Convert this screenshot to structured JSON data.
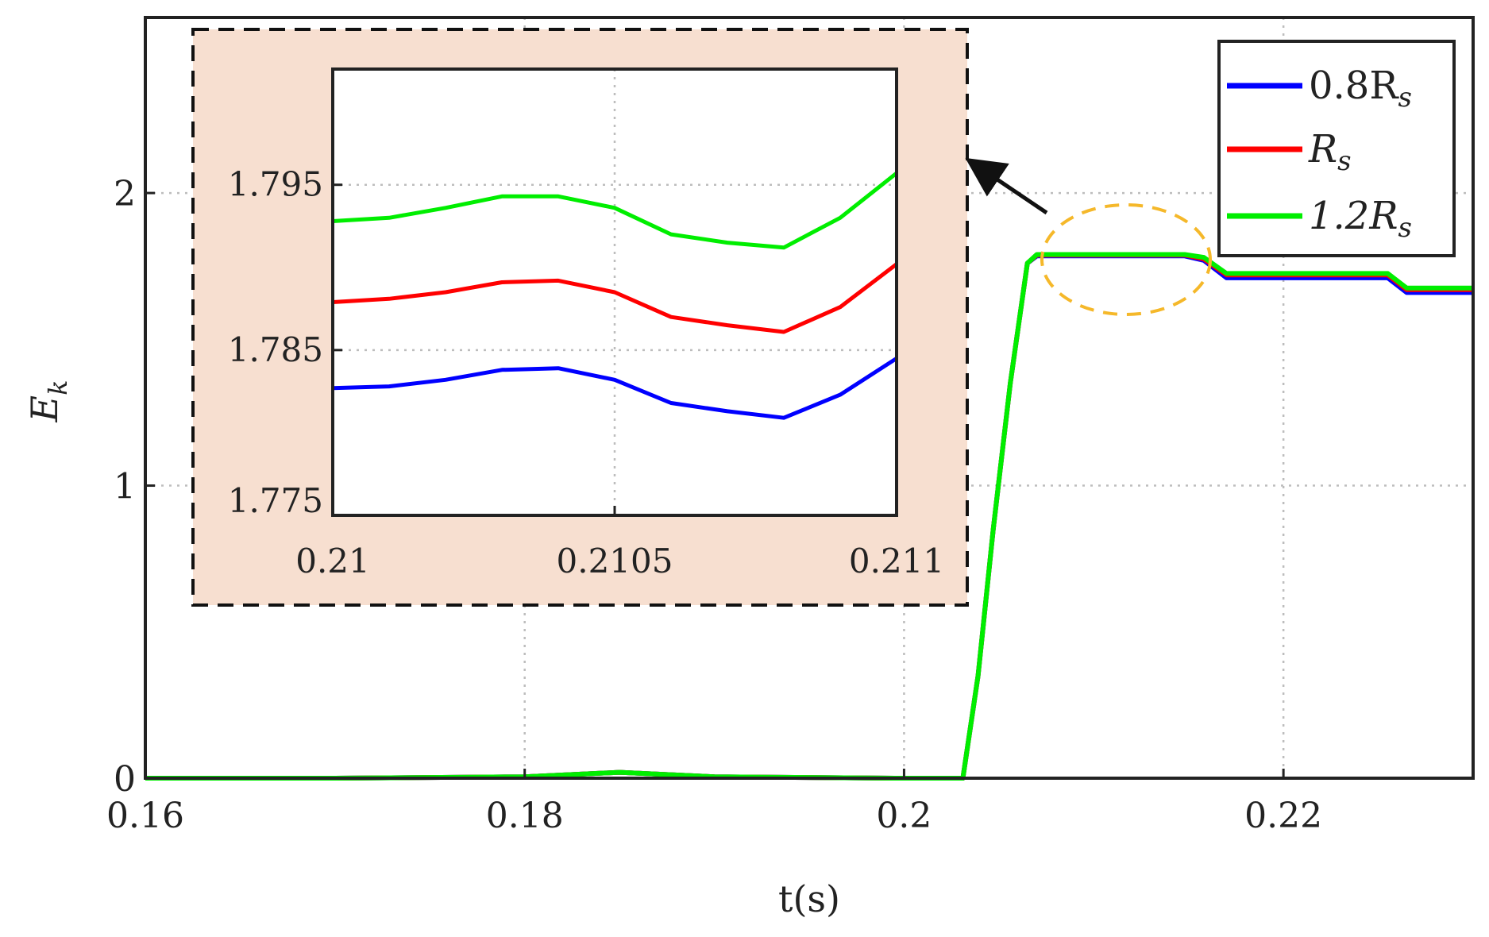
{
  "colors": {
    "series_0_8Rs": "#0000ff",
    "series_Rs": "#ff0000",
    "series_1_2Rs": "#00ee00",
    "inset_background": "#f7dfd0",
    "highlight_ellipse": "#f5b82a",
    "grid": "#bdbdbd",
    "axis": "#222222"
  },
  "chart_data": [
    {
      "type": "line",
      "xlabel": "t(s)",
      "ylabel_main": "E",
      "ylabel_sub": "k",
      "xlim": [
        0.16,
        0.23
      ],
      "ylim": [
        0,
        2.6
      ],
      "xticks": [
        "0.16",
        "0.18",
        "0.2",
        "0.22"
      ],
      "yticks": [
        "0",
        "1",
        "2"
      ],
      "xtick_values": [
        0.16,
        0.18,
        0.2,
        0.22
      ],
      "ytick_values": [
        0,
        1,
        2
      ],
      "grid": true,
      "legend_placement": "top-right",
      "x": [
        0.16,
        0.17,
        0.18,
        0.185,
        0.19,
        0.1995,
        0.2031,
        0.2039,
        0.2047,
        0.2056,
        0.2065,
        0.207,
        0.21,
        0.2148,
        0.2158,
        0.217,
        0.2185,
        0.2225,
        0.2255,
        0.2265,
        0.23
      ],
      "series": [
        {
          "name_main": "0.8R",
          "name_sub": "s",
          "values": [
            0.0,
            0.0,
            0.005,
            0.02,
            0.005,
            0.0,
            0.0,
            0.35,
            0.85,
            1.35,
            1.76,
            1.785,
            1.785,
            1.785,
            1.77,
            1.71,
            1.71,
            1.71,
            1.71,
            1.66,
            1.66
          ]
        },
        {
          "name_main": "R",
          "name_sub": "s",
          "values": [
            0.0,
            0.0,
            0.005,
            0.02,
            0.005,
            0.0,
            0.0,
            0.35,
            0.85,
            1.35,
            1.76,
            1.788,
            1.788,
            1.788,
            1.775,
            1.72,
            1.72,
            1.72,
            1.72,
            1.67,
            1.67
          ]
        },
        {
          "name_main": "1.2R",
          "name_sub": "s",
          "values": [
            0.0,
            0.0,
            0.005,
            0.02,
            0.005,
            0.0,
            0.0,
            0.35,
            0.85,
            1.35,
            1.76,
            1.79,
            1.79,
            1.79,
            1.78,
            1.725,
            1.725,
            1.725,
            1.725,
            1.675,
            1.675
          ]
        }
      ]
    },
    {
      "type": "line",
      "title": "",
      "xlim": [
        0.21,
        0.211
      ],
      "ylim": [
        1.775,
        1.802
      ],
      "xticks": [
        "0.21",
        "0.2105",
        "0.211"
      ],
      "yticks": [
        "1.775",
        "1.785",
        "1.795"
      ],
      "xtick_values": [
        0.21,
        0.2105,
        0.211
      ],
      "ytick_values": [
        1.775,
        1.785,
        1.795
      ],
      "grid": true,
      "x": [
        0.21,
        0.2101,
        0.2102,
        0.2103,
        0.2104,
        0.2105,
        0.2106,
        0.2107,
        0.2108,
        0.2109,
        0.211
      ],
      "series": [
        {
          "name_main": "0.8R",
          "name_sub": "s",
          "values": [
            1.7827,
            1.7828,
            1.7832,
            1.7838,
            1.7839,
            1.7832,
            1.7818,
            1.7813,
            1.7809,
            1.7823,
            1.7845
          ]
        },
        {
          "name_main": "R",
          "name_sub": "s",
          "values": [
            1.7879,
            1.7881,
            1.7885,
            1.7891,
            1.7892,
            1.7885,
            1.787,
            1.7865,
            1.7861,
            1.7876,
            1.7902
          ]
        },
        {
          "name_main": "1.2R",
          "name_sub": "s",
          "values": [
            1.7928,
            1.793,
            1.7936,
            1.7943,
            1.7943,
            1.7936,
            1.792,
            1.7915,
            1.7912,
            1.793,
            1.7957
          ]
        }
      ]
    }
  ]
}
